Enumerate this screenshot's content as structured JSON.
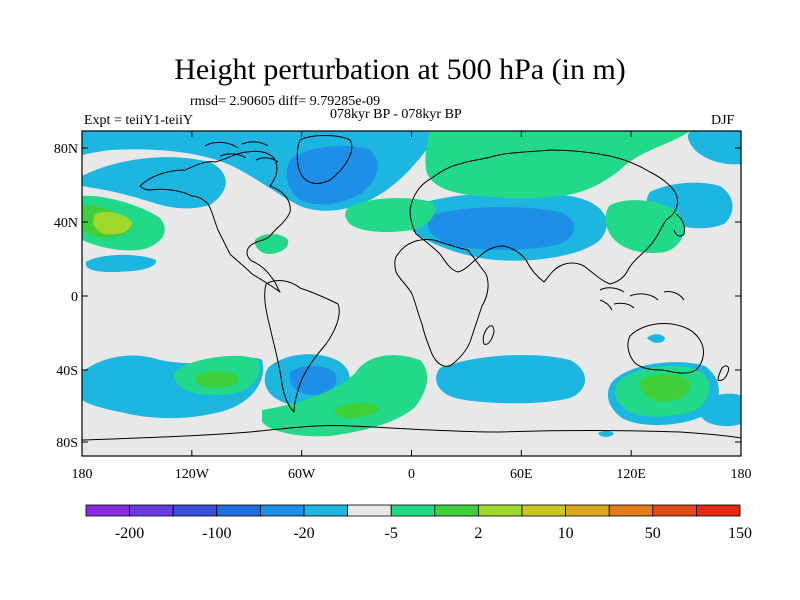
{
  "title": "Height perturbation at 500 hPa (in m)",
  "stats": "rmsd= 2.90605 diff= 9.79285e-09",
  "experiment": "Expt = teiiY1-teiiY",
  "period": "078kyr BP - 078kyr BP",
  "season": "DJF",
  "lat_labels": [
    "80N",
    "40N",
    "0",
    "40S",
    "80S"
  ],
  "lon_labels": [
    "180",
    "120W",
    "60W",
    "0",
    "60E",
    "120E",
    "180"
  ],
  "colorbar": {
    "labels": [
      "-200",
      "-100",
      "-20",
      "-5",
      "2",
      "10",
      "50",
      "150"
    ],
    "colors": [
      "#8a2be2",
      "#6a3be0",
      "#3a4fd8",
      "#1f6fe0",
      "#1e8fe6",
      "#1cb6e0",
      "#e8e8e8",
      "#22d98a",
      "#3fcf3a",
      "#9fd82a",
      "#c8c822",
      "#d8a81e",
      "#e07a1a",
      "#e04a16",
      "#e42a12"
    ]
  },
  "colors": {
    "background": "#e8e8e8",
    "light_blue": "#1cb6e0",
    "mid_blue": "#1e8fe6",
    "blue": "#1f6fe0",
    "green": "#22d98a",
    "green2": "#3fcf3a",
    "yellow_green": "#9fd82a"
  }
}
